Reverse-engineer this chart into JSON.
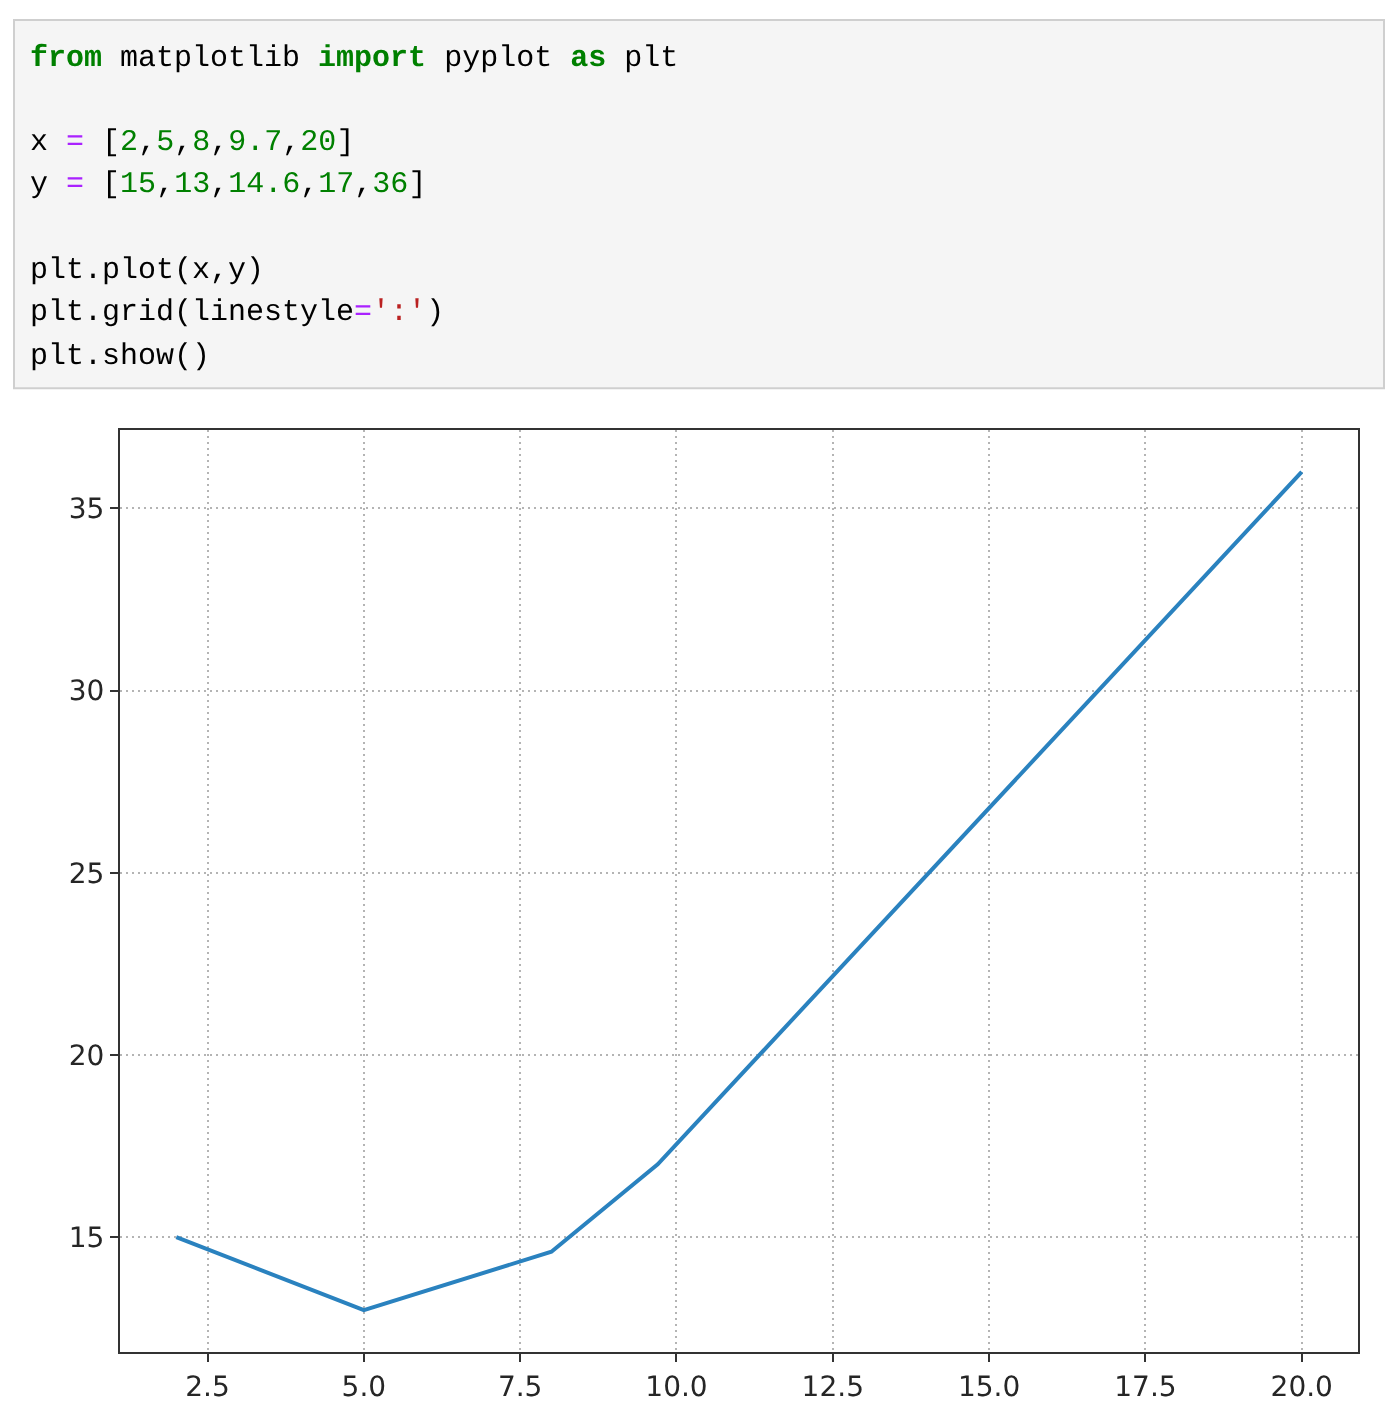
{
  "chart_data": {
    "type": "line",
    "x": [
      2,
      5,
      8,
      9.7,
      20
    ],
    "series": [
      {
        "color": "#2a82bf",
        "values": [
          15,
          13,
          14.6,
          17,
          36
        ]
      }
    ],
    "xlim": [
      1.1,
      20.9
    ],
    "ylim": [
      11.85,
      37.15
    ],
    "xticks": [
      2.5,
      {
        "value": 5,
        "label": "5.0"
      },
      7.5,
      {
        "value": 10,
        "label": "10.0"
      },
      12.5,
      {
        "value": 15,
        "label": "15.0"
      },
      17.5,
      {
        "value": 20,
        "label": "20.0"
      }
    ],
    "yticks": [
      15,
      20,
      25,
      30,
      35
    ],
    "grid": true,
    "annotations": [
      "from matplotlib import pyplot as plt",
      "x = [2,5,8,9.7,20]\ny = [15,13,14.6,17,36]",
      "plt.plot(x,y)\nplt.grid(linestyle=':')\nplt.show()"
    ]
  }
}
